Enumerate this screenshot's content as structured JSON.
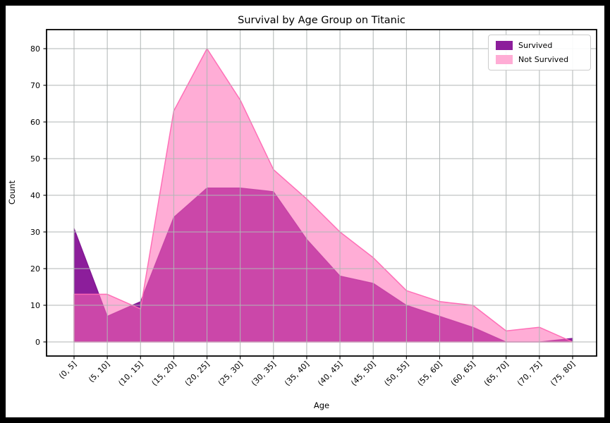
{
  "figure": {
    "title": "Survival by Age Group on Titanic",
    "xlabel": "Age",
    "ylabel": "Count"
  },
  "legend": {
    "items": [
      {
        "label": "Survived",
        "color": "#8C1E9B"
      },
      {
        "label": "Not Survived",
        "color": "#FFACD5"
      }
    ]
  },
  "colors": {
    "survived_fill": "#8C1E9B",
    "not_survived_base": "#FF69B4",
    "not_survived_display": "#FFACD5",
    "overlap_display": "#C743A8",
    "grid": "#b0b6b5",
    "frame": "#000000",
    "figure_background": "#ffffff",
    "page_background": "#000000"
  },
  "chart_data": {
    "type": "area",
    "title": "Survival by Age Group on Titanic",
    "xlabel": "Age",
    "ylabel": "Count",
    "categories": [
      "(0, 5]",
      "(5, 10]",
      "(10, 15]",
      "(15, 20]",
      "(20, 25]",
      "(25, 30]",
      "(30, 35]",
      "(35, 40]",
      "(40, 45]",
      "(45, 50]",
      "(50, 55]",
      "(55, 60]",
      "(60, 65]",
      "(65, 70]",
      "(70, 75]",
      "(75, 80]"
    ],
    "series": [
      {
        "name": "Survived",
        "values": [
          31,
          7,
          11,
          34,
          42,
          42,
          41,
          28,
          18,
          16,
          10,
          7,
          4,
          0,
          0,
          1
        ]
      },
      {
        "name": "Not Survived",
        "values": [
          13,
          13,
          9,
          63,
          80,
          66,
          47,
          39,
          30,
          23,
          14,
          11,
          10,
          3,
          4,
          0
        ]
      }
    ],
    "yticks": [
      0,
      10,
      20,
      30,
      40,
      50,
      60,
      70,
      80
    ],
    "ylim": [
      -4,
      85
    ],
    "grid": true,
    "legend_position": "upper right",
    "xtick_rotation": 45
  }
}
